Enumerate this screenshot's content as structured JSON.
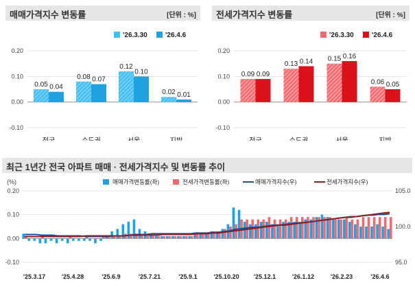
{
  "colors": {
    "sale_recent": "#1fa3e0",
    "sale_prev": "#44bdf0",
    "jeonse_recent": "#d9121c",
    "jeonse_prev": "#f06a70",
    "sale_line": "#1e4e96",
    "jeonse_line": "#8e1a22",
    "header_bg": "#e6e6e6"
  },
  "top_left": {
    "title": "매매가격지수 변동률",
    "unit": "[단위 : %]"
  },
  "top_right": {
    "title": "전세가격지수 변동률",
    "unit": "[단위 : %]"
  },
  "bottom": {
    "title": "최근 1년간 전국 아파트 매매 · 전세가격지수 및 변동률 추이",
    "unit_left": "(%)"
  },
  "chart_data": [
    {
      "type": "bar",
      "categories": [
        "전국",
        "수도권",
        "서울",
        "지방"
      ],
      "series": [
        {
          "name": "'26.3.30",
          "values": [
            0.05,
            0.08,
            0.12,
            0.02
          ]
        },
        {
          "name": "'26.4.6",
          "values": [
            0.04,
            0.07,
            0.1,
            0.01
          ]
        }
      ],
      "value_labels": [
        [
          "0.05",
          "0.08",
          "0.12",
          "0.02"
        ],
        [
          "0.04",
          "0.07",
          "0.10",
          "0.01"
        ]
      ],
      "ylim": [
        -0.1,
        0.2
      ],
      "yticks": [
        "-0.10",
        "0.00",
        "0.10",
        "0.20"
      ],
      "legend_position": "top-right"
    },
    {
      "type": "bar",
      "categories": [
        "전국",
        "수도권",
        "서울",
        "지방"
      ],
      "series": [
        {
          "name": "'26.3.30",
          "values": [
            0.09,
            0.13,
            0.15,
            0.06
          ]
        },
        {
          "name": "'26.4.6",
          "values": [
            0.09,
            0.14,
            0.16,
            0.05
          ]
        }
      ],
      "value_labels": [
        [
          "0.09",
          "0.13",
          "0.15",
          "0.06"
        ],
        [
          "0.09",
          "0.14",
          "0.16",
          "0.05"
        ]
      ],
      "ylim": [
        -0.1,
        0.2
      ],
      "yticks": [
        "-0.10",
        "0.00",
        "0.10",
        "0.20"
      ],
      "legend_position": "top-right"
    },
    {
      "type": "bar",
      "x_ticks": [
        "'25.3.17",
        "'25.4.28",
        "'25.6.9",
        "'25.7.21",
        "'25.9.1",
        "'25.10.20",
        "'25.12.1",
        "'26.1.12",
        "'26.2.23",
        "'26.4.6"
      ],
      "ylim": [
        -0.1,
        0.2
      ],
      "yticks": [
        "-0.10",
        "0.00",
        "0.10",
        "0.20"
      ],
      "y2lim": [
        95.0,
        105.0
      ],
      "y2ticks": [
        "95.0",
        "100.0",
        "105.0"
      ],
      "series": [
        {
          "name": "매매가격변동률(좌)",
          "kind": "bar",
          "values": [
            0.02,
            -0.01,
            -0.01,
            -0.02,
            -0.02,
            -0.01,
            -0.02,
            -0.01,
            -0.02,
            -0.01,
            -0.01,
            -0.01,
            -0.01,
            -0.02,
            -0.01,
            0.01,
            0.03,
            0.04,
            0.06,
            0.07,
            0.08,
            0.04,
            0.03,
            0.02,
            0.01,
            0.01,
            0.01,
            0.01,
            0.01,
            0.01,
            0.01,
            0.02,
            0.02,
            0.02,
            0.03,
            0.03,
            0.04,
            0.06,
            0.13,
            0.12,
            0.07,
            0.06,
            0.06,
            0.07,
            0.07,
            0.06,
            0.06,
            0.07,
            0.07,
            0.07,
            0.07,
            0.08,
            0.08,
            0.09,
            0.1,
            0.09,
            0.08,
            0.08,
            0.08,
            0.07,
            0.06,
            0.05,
            0.05,
            0.05,
            0.06,
            0.05,
            0.04
          ]
        },
        {
          "name": "전세가격변동률(좌)",
          "kind": "bar",
          "values": [
            0.01,
            0.0,
            0.0,
            0.01,
            0.0,
            0.0,
            0.0,
            0.0,
            0.01,
            0.0,
            0.0,
            0.01,
            0.0,
            0.0,
            0.01,
            0.01,
            0.01,
            0.01,
            0.02,
            0.02,
            0.02,
            0.01,
            0.01,
            0.01,
            0.01,
            0.01,
            0.01,
            0.01,
            0.01,
            0.01,
            0.01,
            0.02,
            0.02,
            0.02,
            0.03,
            0.03,
            0.04,
            0.05,
            0.06,
            0.08,
            0.08,
            0.08,
            0.08,
            0.08,
            0.09,
            0.08,
            0.08,
            0.08,
            0.09,
            0.09,
            0.09,
            0.09,
            0.09,
            0.09,
            0.09,
            0.09,
            0.08,
            0.08,
            0.09,
            0.08,
            0.08,
            0.09,
            0.09,
            0.09,
            0.09,
            0.09,
            0.09
          ]
        },
        {
          "name": "매매가격지수(우)",
          "kind": "line",
          "values": [
            98.9,
            98.9,
            98.9,
            98.8,
            98.8,
            98.8,
            98.7,
            98.7,
            98.7,
            98.7,
            98.7,
            98.6,
            98.6,
            98.6,
            98.6,
            98.6,
            98.7,
            98.7,
            98.7,
            98.8,
            98.9,
            98.9,
            98.9,
            99.0,
            99.0,
            99.0,
            99.0,
            99.0,
            99.0,
            99.0,
            99.0,
            99.1,
            99.1,
            99.1,
            99.2,
            99.2,
            99.3,
            99.4,
            99.6,
            99.7,
            99.8,
            99.9,
            99.9,
            100.0,
            100.1,
            100.2,
            100.2,
            100.3,
            100.4,
            100.5,
            100.5,
            100.6,
            100.7,
            100.8,
            100.9,
            101.0,
            101.1,
            101.2,
            101.3,
            101.4,
            101.4,
            101.5,
            101.6,
            101.6,
            101.7,
            101.7,
            101.8
          ]
        },
        {
          "name": "전세가격지수(우)",
          "kind": "line",
          "values": [
            98.6,
            98.6,
            98.6,
            98.6,
            98.6,
            98.6,
            98.6,
            98.6,
            98.6,
            98.6,
            98.6,
            98.7,
            98.7,
            98.7,
            98.7,
            98.7,
            98.7,
            98.7,
            98.7,
            98.8,
            98.8,
            98.8,
            98.8,
            98.8,
            98.8,
            98.9,
            98.9,
            98.9,
            98.9,
            98.9,
            98.9,
            99.0,
            99.0,
            99.0,
            99.1,
            99.1,
            99.2,
            99.3,
            99.4,
            99.5,
            99.6,
            99.7,
            99.8,
            99.9,
            100.0,
            100.1,
            100.2,
            100.2,
            100.3,
            100.4,
            100.5,
            100.6,
            100.7,
            100.8,
            100.9,
            101.0,
            101.1,
            101.2,
            101.3,
            101.3,
            101.4,
            101.5,
            101.6,
            101.7,
            101.8,
            101.9,
            102.0
          ]
        }
      ],
      "legend_position": "top"
    }
  ]
}
